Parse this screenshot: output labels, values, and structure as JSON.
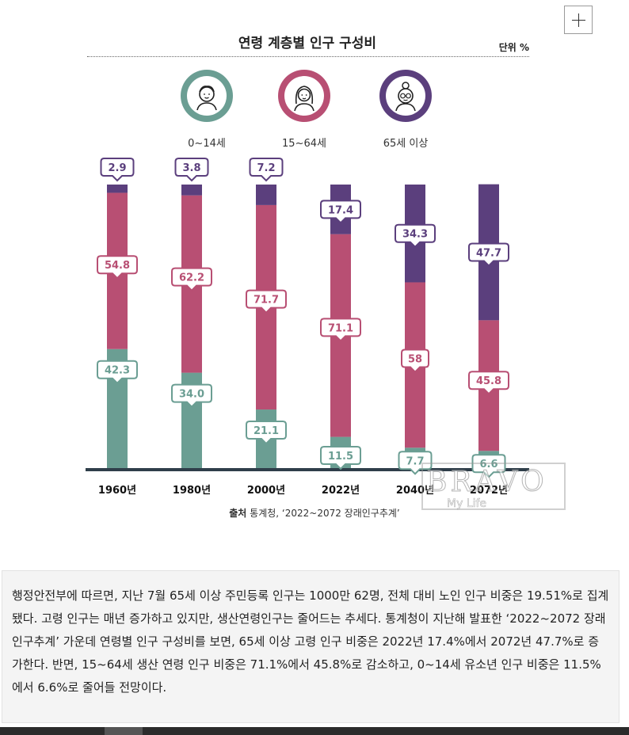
{
  "ui": {
    "expand_button": "+"
  },
  "header": {
    "title": "연령 계층별 인구 구성비",
    "unit": "단위 %"
  },
  "legend": [
    {
      "label": "0~14세",
      "color": "#6b9e93",
      "icon": "child-icon"
    },
    {
      "label": "15~64세",
      "color": "#b84f73",
      "icon": "woman-icon"
    },
    {
      "label": "65세 이상",
      "color": "#5b3f7d",
      "icon": "elderly-icon"
    }
  ],
  "source": {
    "prefix": "출처",
    "text": "통계청, ‘2022~2072 장래인구추계’"
  },
  "watermark": {
    "title": "BRAVO",
    "subtitle": "My Life"
  },
  "article": {
    "text": "행정안전부에 따르면, 지난 7월 65세 이상 주민등록 인구는 1000만 62명, 전체 대비 노인 인구 비중은 19.51%로 집계됐다. 고령 인구는 매년 증가하고 있지만, 생산연령인구는 줄어드는 추세다. 통계청이 지난해 발표한 ‘2022~2072 장래인구추계’ 가운데 연령별 인구 구성비를 보면, 65세 이상 고령 인구 비중은 2022년 17.4%에서 2072년 47.7%로 증가한다. 반면, 15~64세 생산 연령 인구 비중은 71.1%에서 45.8%로 감소하고, 0~14세 유소년 인구 비중은 11.5%에서 6.6%로 줄어들 전망이다."
  },
  "chart_data": {
    "type": "bar",
    "stacked": true,
    "title": "연령 계층별 인구 구성비",
    "unit": "단위 %",
    "categories": [
      "1960년",
      "1980년",
      "2000년",
      "2022년",
      "2040년",
      "2072년"
    ],
    "series": [
      {
        "name": "0~14세",
        "color": "#6b9e93",
        "values": [
          42.3,
          34.0,
          21.1,
          11.5,
          7.7,
          6.6
        ],
        "labels": [
          "42.3",
          "34.0",
          "21.1",
          "11.5",
          "7.7",
          "6.6"
        ]
      },
      {
        "name": "15~64세",
        "color": "#b84f73",
        "values": [
          54.8,
          62.2,
          71.7,
          71.1,
          58,
          45.8
        ],
        "labels": [
          "54.8",
          "62.2",
          "71.7",
          "71.1",
          "58",
          "45.8"
        ]
      },
      {
        "name": "65세 이상",
        "color": "#5b3f7d",
        "values": [
          2.9,
          3.8,
          7.2,
          17.4,
          34.3,
          47.7
        ],
        "labels": [
          "2.9",
          "3.8",
          "7.2",
          "17.4",
          "34.3",
          "47.7"
        ]
      }
    ],
    "ylim": [
      0,
      100
    ],
    "grid": false,
    "legend_position": "top"
  }
}
